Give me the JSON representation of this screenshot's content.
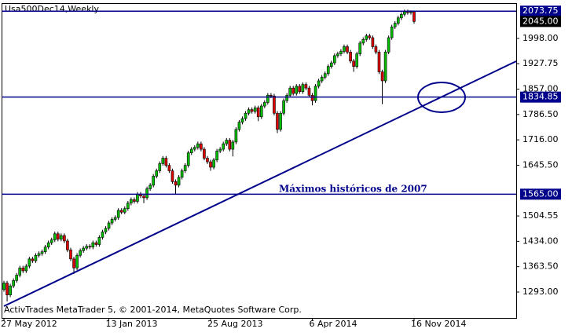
{
  "chart_data": {
    "type": "candlestick",
    "title": "Usa500Dec14,Weekly",
    "footer": "ActivTrades MetaTrader 5, © 2001-2014, MetaQuotes Software Corp.",
    "annotation": "Máximos históricos de 2007",
    "categories": [
      "27 May 2012",
      null,
      null,
      null,
      null,
      null,
      null,
      null,
      null,
      null,
      null,
      null,
      null,
      null,
      null,
      null,
      null,
      null,
      null,
      null,
      null,
      null,
      null,
      null,
      null,
      null,
      null,
      null,
      null,
      null,
      null,
      null,
      null,
      "13 Jan 2013",
      null,
      null,
      null,
      null,
      null,
      null,
      null,
      null,
      null,
      null,
      null,
      null,
      null,
      null,
      null,
      null,
      null,
      null,
      null,
      null,
      null,
      null,
      null,
      null,
      null,
      null,
      null,
      null,
      null,
      null,
      null,
      "25 Aug 2013",
      null,
      null,
      null,
      null,
      null,
      null,
      null,
      null,
      null,
      null,
      null,
      null,
      null,
      null,
      null,
      null,
      null,
      null,
      null,
      null,
      null,
      null,
      null,
      null,
      null,
      null,
      null,
      null,
      null,
      null,
      null,
      "6 Apr 2014",
      null,
      null,
      null,
      null,
      null,
      null,
      null,
      null,
      null,
      null,
      null,
      null,
      null,
      null,
      null,
      null,
      null,
      null,
      null,
      null,
      null,
      null,
      null,
      null,
      null,
      null,
      null,
      null,
      null,
      null,
      null,
      "16 Nov 2014"
    ],
    "open": [
      1300,
      1318,
      1285,
      1310,
      1325,
      1340,
      1360,
      1352,
      1365,
      1385,
      1380,
      1395,
      1400,
      1405,
      1418,
      1430,
      1438,
      1455,
      1440,
      1450,
      1435,
      1410,
      1385,
      1360,
      1395,
      1408,
      1415,
      1420,
      1418,
      1430,
      1425,
      1445,
      1460,
      1470,
      1485,
      1495,
      1500,
      1520,
      1515,
      1525,
      1540,
      1550,
      1545,
      1565,
      1560,
      1555,
      1580,
      1590,
      1615,
      1630,
      1650,
      1665,
      1645,
      1630,
      1600,
      1590,
      1612,
      1630,
      1645,
      1680,
      1690,
      1695,
      1705,
      1690,
      1665,
      1655,
      1640,
      1660,
      1685,
      1690,
      1705,
      1715,
      1690,
      1710,
      1745,
      1765,
      1775,
      1790,
      1800,
      1795,
      1805,
      1780,
      1810,
      1820,
      1840,
      1838,
      1790,
      1745,
      1790,
      1825,
      1840,
      1860,
      1845,
      1865,
      1850,
      1870,
      1860,
      1840,
      1825,
      1865,
      1880,
      1890,
      1900,
      1920,
      1930,
      1950,
      1955,
      1962,
      1975,
      1960,
      1935,
      1920,
      1955,
      1985,
      1995,
      2005,
      2000,
      1975,
      1960,
      1905,
      1880,
      1960,
      2000,
      2030,
      2040,
      2055,
      2065,
      2072,
      2070,
      2072
    ],
    "high": [
      1324,
      1324,
      1316,
      1331,
      1346,
      1366,
      1366,
      1371,
      1391,
      1391,
      1401,
      1406,
      1411,
      1424,
      1436,
      1444,
      1461,
      1461,
      1456,
      1456,
      1441,
      1416,
      1391,
      1401,
      1414,
      1421,
      1426,
      1426,
      1436,
      1436,
      1451,
      1466,
      1476,
      1491,
      1501,
      1506,
      1526,
      1526,
      1531,
      1546,
      1556,
      1556,
      1571,
      1571,
      1566,
      1586,
      1596,
      1621,
      1636,
      1656,
      1671,
      1671,
      1651,
      1636,
      1606,
      1618,
      1636,
      1651,
      1686,
      1696,
      1701,
      1711,
      1711,
      1696,
      1671,
      1661,
      1666,
      1691,
      1696,
      1711,
      1721,
      1721,
      1716,
      1751,
      1771,
      1781,
      1796,
      1806,
      1806,
      1811,
      1811,
      1816,
      1826,
      1846,
      1846,
      1844,
      1796,
      1796,
      1831,
      1846,
      1866,
      1866,
      1871,
      1871,
      1876,
      1876,
      1866,
      1846,
      1871,
      1886,
      1896,
      1906,
      1926,
      1936,
      1956,
      1961,
      1968,
      1981,
      1981,
      1966,
      1941,
      1961,
      1991,
      2001,
      2011,
      2011,
      2006,
      1981,
      1966,
      1911,
      1966,
      2006,
      2036,
      2046,
      2061,
      2071,
      2078,
      2078,
      2076,
      2075
    ],
    "low": [
      1294,
      1267,
      1279,
      1304,
      1319,
      1334,
      1346,
      1346,
      1359,
      1374,
      1374,
      1389,
      1394,
      1399,
      1412,
      1424,
      1432,
      1434,
      1434,
      1429,
      1404,
      1379,
      1343,
      1354,
      1389,
      1402,
      1409,
      1412,
      1412,
      1419,
      1419,
      1439,
      1454,
      1464,
      1479,
      1489,
      1494,
      1509,
      1509,
      1519,
      1534,
      1539,
      1539,
      1554,
      1540,
      1549,
      1574,
      1584,
      1609,
      1624,
      1644,
      1639,
      1624,
      1594,
      1565,
      1584,
      1606,
      1624,
      1639,
      1674,
      1684,
      1689,
      1684,
      1659,
      1649,
      1630,
      1634,
      1654,
      1679,
      1684,
      1699,
      1684,
      1670,
      1704,
      1739,
      1759,
      1769,
      1784,
      1789,
      1789,
      1768,
      1774,
      1804,
      1814,
      1832,
      1784,
      1735,
      1739,
      1784,
      1819,
      1834,
      1839,
      1839,
      1844,
      1844,
      1854,
      1834,
      1812,
      1819,
      1859,
      1874,
      1884,
      1894,
      1914,
      1924,
      1944,
      1949,
      1956,
      1954,
      1929,
      1905,
      1914,
      1949,
      1979,
      1989,
      1994,
      1969,
      1954,
      1899,
      1815,
      1874,
      1954,
      1994,
      2024,
      2034,
      2049,
      2059,
      2064,
      2064,
      2039
    ],
    "close": [
      1318,
      1285,
      1310,
      1325,
      1340,
      1360,
      1352,
      1365,
      1385,
      1380,
      1395,
      1400,
      1405,
      1418,
      1430,
      1438,
      1455,
      1440,
      1450,
      1435,
      1410,
      1385,
      1360,
      1395,
      1408,
      1415,
      1420,
      1418,
      1430,
      1425,
      1445,
      1460,
      1470,
      1485,
      1495,
      1500,
      1520,
      1515,
      1525,
      1540,
      1550,
      1545,
      1565,
      1560,
      1555,
      1580,
      1590,
      1615,
      1630,
      1650,
      1665,
      1645,
      1630,
      1600,
      1590,
      1612,
      1630,
      1645,
      1680,
      1690,
      1695,
      1705,
      1690,
      1665,
      1655,
      1640,
      1660,
      1685,
      1690,
      1705,
      1715,
      1690,
      1710,
      1745,
      1765,
      1775,
      1790,
      1800,
      1795,
      1805,
      1780,
      1810,
      1820,
      1840,
      1838,
      1790,
      1745,
      1790,
      1825,
      1840,
      1860,
      1845,
      1865,
      1850,
      1870,
      1860,
      1840,
      1825,
      1865,
      1880,
      1890,
      1900,
      1920,
      1930,
      1950,
      1955,
      1962,
      1975,
      1960,
      1935,
      1920,
      1955,
      1985,
      1995,
      2005,
      2000,
      1975,
      1960,
      1905,
      1880,
      1960,
      2000,
      2030,
      2040,
      2055,
      2065,
      2072,
      2070,
      2072,
      2045
    ],
    "up_color": "#00c000",
    "down_color": "#e00000",
    "level_color": "#00008b",
    "ylim": [
      1221,
      2096
    ],
    "yticks": [
      {
        "value": 1293,
        "label": "1293.00"
      },
      {
        "value": 1363.5,
        "label": "1363.50"
      },
      {
        "value": 1434,
        "label": "1434.00"
      },
      {
        "value": 1504.55,
        "label": "1504.55"
      },
      {
        "value": 1645.5,
        "label": "1645.50"
      },
      {
        "value": 1716,
        "label": "1716.00"
      },
      {
        "value": 1786.5,
        "label": "1786.50"
      },
      {
        "value": 1857,
        "label": "1857.00"
      },
      1927.75,
      {
        "value": 1998,
        "label": "1998.00"
      }
    ],
    "levels": [
      2073.75,
      {
        "value": 1834.85,
        "label": "1834.85"
      },
      {
        "value": 1565,
        "label": "1565.00"
      }
    ],
    "current_price": {
      "value": 2045,
      "label": "2045.00"
    }
  }
}
